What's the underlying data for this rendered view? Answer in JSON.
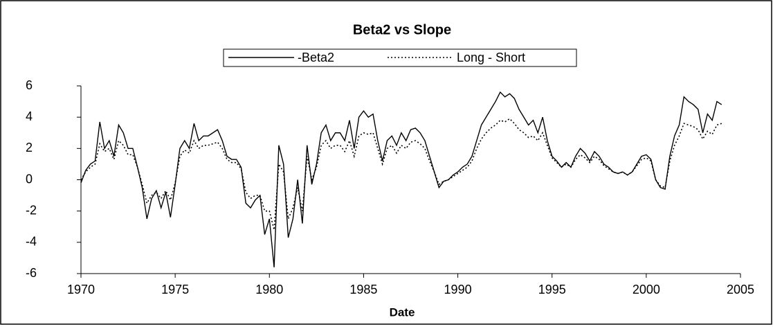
{
  "chart_data": {
    "type": "line",
    "title": "Beta2 vs Slope",
    "xlabel": "Date",
    "legend": "top",
    "x": [
      1970,
      1970.25,
      1970.5,
      1970.75,
      1971,
      1971.25,
      1971.5,
      1971.75,
      1972,
      1972.25,
      1972.5,
      1972.75,
      1973,
      1973.25,
      1973.5,
      1973.75,
      1974,
      1974.25,
      1974.5,
      1974.75,
      1975,
      1975.25,
      1975.5,
      1975.75,
      1976,
      1976.25,
      1976.5,
      1976.75,
      1977,
      1977.25,
      1977.5,
      1977.75,
      1978,
      1978.25,
      1978.5,
      1978.75,
      1979,
      1979.25,
      1979.5,
      1979.75,
      1980,
      1980.25,
      1980.5,
      1980.75,
      1981,
      1981.25,
      1981.5,
      1981.75,
      1982,
      1982.25,
      1982.5,
      1982.75,
      1983,
      1983.25,
      1983.5,
      1983.75,
      1984,
      1984.25,
      1984.5,
      1984.75,
      1985,
      1985.25,
      1985.5,
      1985.75,
      1986,
      1986.25,
      1986.5,
      1986.75,
      1987,
      1987.25,
      1987.5,
      1987.75,
      1988,
      1988.25,
      1988.5,
      1988.75,
      1989,
      1989.25,
      1989.5,
      1989.75,
      1990,
      1990.25,
      1990.5,
      1990.75,
      1991,
      1991.25,
      1991.5,
      1991.75,
      1992,
      1992.25,
      1992.5,
      1992.75,
      1993,
      1993.25,
      1993.5,
      1993.75,
      1994,
      1994.25,
      1994.5,
      1994.75,
      1995,
      1995.25,
      1995.5,
      1995.75,
      1996,
      1996.25,
      1996.5,
      1996.75,
      1997,
      1997.25,
      1997.5,
      1997.75,
      1998,
      1998.25,
      1998.5,
      1998.75,
      1999,
      1999.25,
      1999.5,
      1999.75,
      2000,
      2000.25,
      2000.5,
      2000.75,
      2001,
      2001.25,
      2001.5,
      2001.75,
      2002,
      2002.25,
      2002.5,
      2002.75,
      2003,
      2003.25,
      2003.5,
      2003.75,
      2004
    ],
    "series": [
      {
        "name": "-Beta2",
        "color": "#000000",
        "dash": "solid",
        "values": [
          -0.2,
          0.6,
          1.0,
          1.2,
          3.7,
          2.0,
          2.5,
          1.5,
          3.5,
          3.0,
          2.0,
          2.0,
          0.8,
          -0.5,
          -2.5,
          -1.2,
          -0.7,
          -1.8,
          -0.8,
          -2.4,
          -0.3,
          2.0,
          2.5,
          2.0,
          3.6,
          2.5,
          2.8,
          2.8,
          3.0,
          3.2,
          2.5,
          1.5,
          1.3,
          1.3,
          0.8,
          -1.5,
          -1.8,
          -1.3,
          -1.0,
          -3.5,
          -2.5,
          -5.6,
          2.2,
          1.0,
          -3.7,
          -2.5,
          0.0,
          -2.8,
          2.2,
          -0.3,
          1.0,
          3.0,
          3.5,
          2.5,
          3.0,
          3.0,
          2.5,
          3.8,
          2.0,
          4.0,
          4.4,
          4.0,
          4.2,
          2.5,
          1.2,
          2.5,
          2.8,
          2.2,
          3.0,
          2.5,
          3.2,
          3.3,
          3.0,
          2.5,
          1.5,
          0.5,
          -0.5,
          -0.1,
          0.0,
          0.3,
          0.5,
          0.8,
          1.0,
          1.5,
          2.5,
          3.5,
          4.0,
          4.5,
          5.0,
          5.6,
          5.3,
          5.5,
          5.2,
          4.5,
          4.0,
          3.5,
          3.8,
          3.0,
          4.0,
          2.5,
          1.5,
          1.2,
          0.8,
          1.1,
          0.8,
          1.5,
          2.0,
          1.7,
          1.2,
          1.8,
          1.5,
          1.0,
          0.8,
          0.5,
          0.4,
          0.5,
          0.3,
          0.5,
          1.0,
          1.5,
          1.6,
          1.3,
          0.0,
          -0.5,
          -0.6,
          1.5,
          2.8,
          3.5,
          5.3,
          5.0,
          4.8,
          4.5,
          3.0,
          4.2,
          3.8,
          5.0,
          4.8
        ]
      },
      {
        "name": "Long - Short",
        "color": "#000000",
        "dash": "dotted",
        "values": [
          0.0,
          0.5,
          0.8,
          1.0,
          2.3,
          1.8,
          2.0,
          1.3,
          2.5,
          2.2,
          1.6,
          1.6,
          0.8,
          -0.3,
          -1.5,
          -1.0,
          -0.8,
          -1.2,
          -0.7,
          -1.3,
          -0.2,
          1.5,
          1.9,
          1.7,
          2.5,
          2.0,
          2.2,
          2.2,
          2.3,
          2.4,
          2.0,
          1.3,
          1.1,
          1.1,
          0.7,
          -0.8,
          -1.2,
          -1.0,
          -1.0,
          -2.0,
          -2.0,
          -3.2,
          1.0,
          0.5,
          -2.5,
          -1.8,
          -0.5,
          -2.0,
          1.5,
          0.0,
          0.8,
          2.2,
          2.5,
          2.0,
          2.2,
          2.2,
          1.8,
          2.5,
          1.5,
          2.8,
          3.0,
          2.9,
          3.0,
          2.0,
          1.0,
          2.0,
          2.2,
          1.7,
          2.2,
          2.0,
          2.4,
          2.5,
          2.3,
          2.0,
          1.2,
          0.5,
          -0.3,
          -0.1,
          0.0,
          0.2,
          0.4,
          0.6,
          0.8,
          1.2,
          2.0,
          2.6,
          3.0,
          3.3,
          3.5,
          3.8,
          3.7,
          3.9,
          3.6,
          3.2,
          3.0,
          2.7,
          2.8,
          2.5,
          3.0,
          2.2,
          1.4,
          1.1,
          0.8,
          1.0,
          0.8,
          1.3,
          1.6,
          1.4,
          1.1,
          1.5,
          1.3,
          0.9,
          0.7,
          0.5,
          0.4,
          0.5,
          0.3,
          0.5,
          0.9,
          1.3,
          1.4,
          1.2,
          0.0,
          -0.4,
          -0.5,
          1.2,
          2.2,
          2.8,
          3.6,
          3.5,
          3.4,
          3.2,
          2.6,
          3.1,
          2.9,
          3.5,
          3.6
        ]
      }
    ],
    "xlim": [
      1970,
      2005
    ],
    "xticks": [
      1970,
      1975,
      1980,
      1985,
      1990,
      1995,
      2000,
      2005
    ],
    "ylim": [
      -6,
      6
    ],
    "yticks": [
      -6,
      -4,
      -2,
      0,
      2,
      4,
      6
    ]
  }
}
